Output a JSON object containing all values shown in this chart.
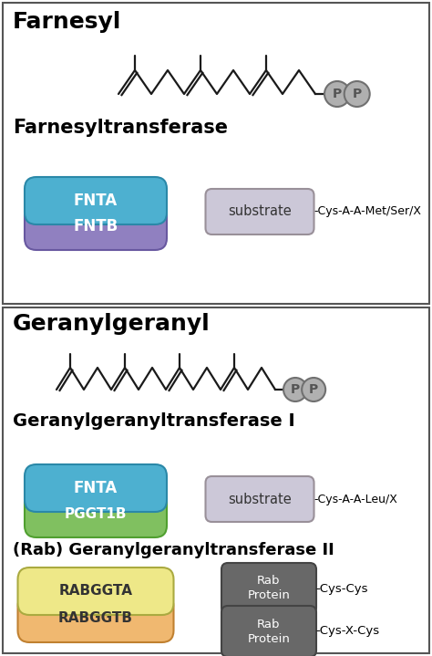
{
  "bg_color": "#ffffff",
  "box_edge": "#555555",
  "section1": {
    "label": "Farnesyl",
    "enzyme_label": "Farnesyltransferase",
    "subunit1": {
      "text": "FNTA",
      "color": "#4db0d0",
      "edge": "#2a88a8"
    },
    "subunit2": {
      "text": "FNTB",
      "color": "#9080c0",
      "edge": "#6858a0"
    },
    "substrate_color": "#ccc8d8",
    "substrate_edge": "#999099",
    "substrate_text": "substrate",
    "motif": "-Cys-A-A-Met/Ser/X"
  },
  "section2": {
    "label": "Geranylgeranyl",
    "enzyme_label": "Geranylgeranyltransferase I",
    "subunit1": {
      "text": "FNTA",
      "color": "#4db0d0",
      "edge": "#2a88a8"
    },
    "subunit2": {
      "text": "PGGT1B",
      "color": "#80c060",
      "edge": "#50a030"
    },
    "substrate_color": "#ccc8d8",
    "substrate_edge": "#999099",
    "substrate_text": "substrate",
    "motif": "-Cys-A-A-Leu/X"
  },
  "section3": {
    "label": "(Rab) Geranylgeranyltransferase II",
    "subunit1": {
      "text": "RABGGTA",
      "color": "#eee888",
      "edge": "#aaaa40"
    },
    "subunit2": {
      "text": "RABGGTB",
      "color": "#f0b870",
      "edge": "#c08030"
    },
    "rab_color": "#686868",
    "rab_edge": "#444444",
    "motif1": "-Cys-Cys",
    "motif2": "-Cys-X-Cys"
  },
  "chain_color": "#1a1a1a",
  "pp_fill": "#b0b0b0",
  "pp_edge": "#707070"
}
